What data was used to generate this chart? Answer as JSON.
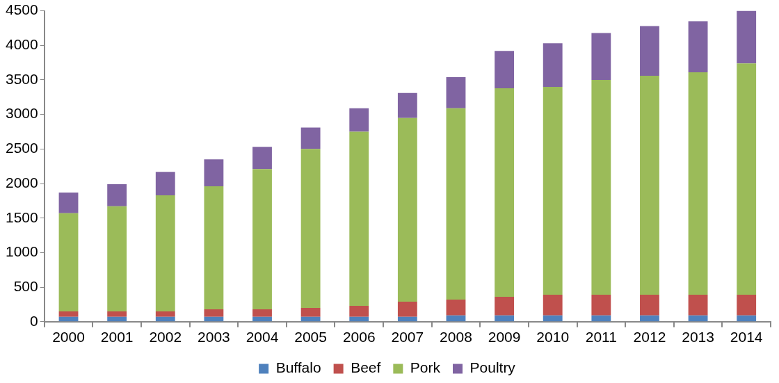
{
  "chart_data": {
    "type": "bar",
    "stacked": true,
    "categories": [
      "2000",
      "2001",
      "2002",
      "2003",
      "2004",
      "2005",
      "2006",
      "2007",
      "2008",
      "2009",
      "2010",
      "2011",
      "2012",
      "2013",
      "2014"
    ],
    "series": [
      {
        "name": "Buffalo",
        "color": "#4f81bd",
        "values": [
          70,
          70,
          70,
          70,
          70,
          70,
          70,
          70,
          90,
          90,
          90,
          90,
          90,
          90,
          90
        ]
      },
      {
        "name": "Beef",
        "color": "#c0504d",
        "values": [
          80,
          80,
          80,
          110,
          110,
          130,
          160,
          220,
          230,
          270,
          300,
          300,
          300,
          300,
          300
        ]
      },
      {
        "name": "Pork",
        "color": "#9bbb59",
        "values": [
          1420,
          1520,
          1680,
          1780,
          2030,
          2300,
          2520,
          2660,
          2770,
          3020,
          3010,
          3110,
          3170,
          3220,
          3350
        ]
      },
      {
        "name": "Poultry",
        "color": "#8064a2",
        "values": [
          300,
          320,
          340,
          390,
          320,
          310,
          340,
          360,
          450,
          540,
          630,
          680,
          720,
          740,
          760
        ]
      }
    ],
    "ylim": [
      0,
      4500
    ],
    "yticks": [
      0,
      500,
      1000,
      1500,
      2000,
      2500,
      3000,
      3500,
      4000,
      4500
    ],
    "grid": false,
    "legend": "bottom"
  }
}
